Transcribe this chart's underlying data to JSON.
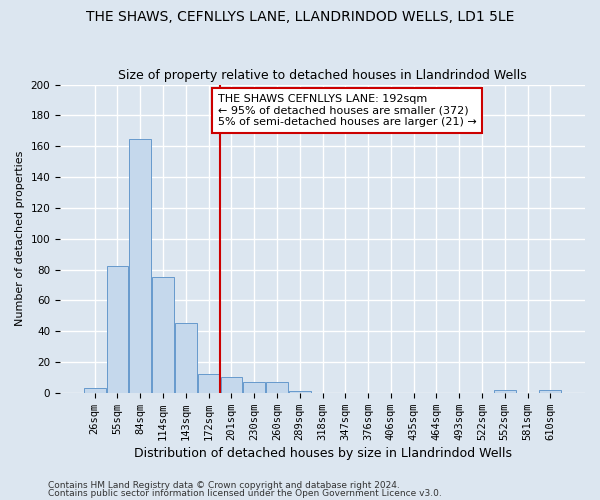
{
  "title": "THE SHAWS, CEFNLLYS LANE, LLANDRINDOD WELLS, LD1 5LE",
  "subtitle": "Size of property relative to detached houses in Llandrindod Wells",
  "xlabel": "Distribution of detached houses by size in Llandrindod Wells",
  "ylabel": "Number of detached properties",
  "footnote1": "Contains HM Land Registry data © Crown copyright and database right 2024.",
  "footnote2": "Contains public sector information licensed under the Open Government Licence v3.0.",
  "categories": [
    "26sqm",
    "55sqm",
    "84sqm",
    "114sqm",
    "143sqm",
    "172sqm",
    "201sqm",
    "230sqm",
    "260sqm",
    "289sqm",
    "318sqm",
    "347sqm",
    "376sqm",
    "406sqm",
    "435sqm",
    "464sqm",
    "493sqm",
    "522sqm",
    "552sqm",
    "581sqm",
    "610sqm"
  ],
  "values": [
    3,
    82,
    165,
    75,
    45,
    12,
    10,
    7,
    7,
    1,
    0,
    0,
    0,
    0,
    0,
    0,
    0,
    0,
    2,
    0,
    2
  ],
  "bar_color": "#c5d8ec",
  "bar_edge_color": "#6699cc",
  "vline_x_index": 6,
  "vline_color": "#cc0000",
  "annotation_text": "THE SHAWS CEFNLLYS LANE: 192sqm\n← 95% of detached houses are smaller (372)\n5% of semi-detached houses are larger (21) →",
  "annotation_box_facecolor": "white",
  "annotation_box_edgecolor": "#cc0000",
  "ylim": [
    0,
    200
  ],
  "yticks": [
    0,
    20,
    40,
    60,
    80,
    100,
    120,
    140,
    160,
    180,
    200
  ],
  "background_color": "#dce6f0",
  "plot_bg_color": "#dce6f0",
  "grid_color": "#ffffff",
  "title_fontsize": 10,
  "xlabel_fontsize": 9,
  "ylabel_fontsize": 8,
  "tick_fontsize": 7.5,
  "annotation_fontsize": 8,
  "footnote_fontsize": 6.5
}
